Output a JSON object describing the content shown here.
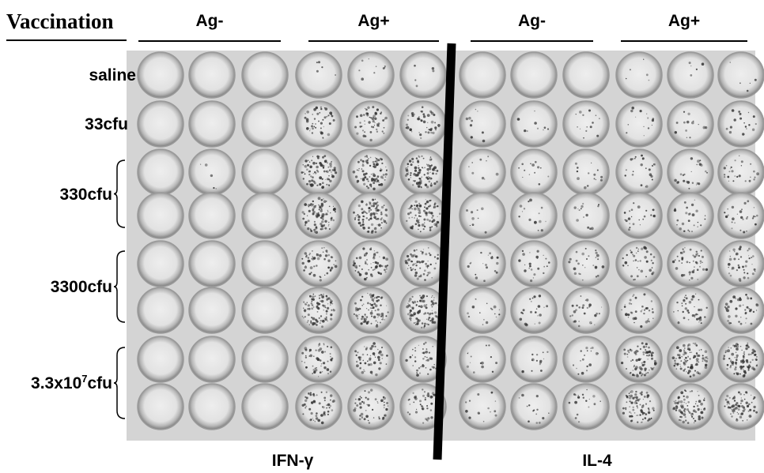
{
  "header": {
    "title": "Vaccination"
  },
  "groups": [
    "Ag-",
    "Ag+",
    "Ag-",
    "Ag+"
  ],
  "rows": [
    {
      "label": "saline"
    },
    {
      "label": "33cfu"
    },
    {
      "label": "330cfu"
    },
    {
      "label": "3300cfu"
    },
    {
      "label": "3.3x10",
      "sup": "7",
      "suffix": "cfu"
    }
  ],
  "cytokines": [
    "IFN-γ",
    "IL-4"
  ]
}
